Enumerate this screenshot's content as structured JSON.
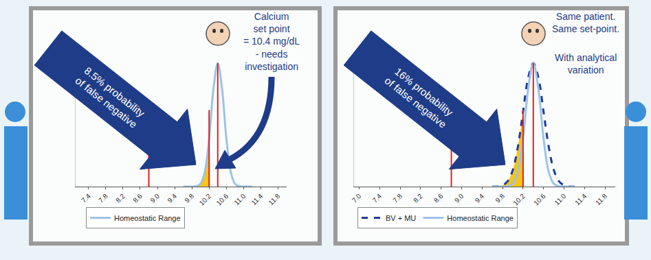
{
  "chart_data": [
    {
      "type": "line",
      "x": [
        9.6,
        9.7,
        9.8,
        9.9,
        10.0,
        10.1,
        10.2,
        10.3,
        10.4,
        10.5,
        10.6,
        10.7,
        10.8,
        10.9,
        11.0,
        11.1,
        11.2
      ],
      "series": [
        {
          "name": "Homeostatic Range",
          "color": "#9dc3e6",
          "line_style": "solid",
          "values": [
            0,
            0,
            0,
            0.003,
            0.023,
            0.122,
            0.39,
            0.79,
            1,
            0.79,
            0.39,
            0.122,
            0.023,
            0.003,
            0,
            0,
            0
          ]
        }
      ],
      "xlim": [
        7.1,
        12
      ],
      "xticks": [
        7.4,
        7.8,
        8.2,
        8.6,
        {
          "value": 9,
          "label": "9.0"
        },
        9.4,
        9.8,
        10.2,
        10.6,
        {
          "value": 11,
          "label": "11.0"
        },
        11.4,
        11.8
      ],
      "ylim": [
        0,
        1.05
      ],
      "grid": false,
      "tick_labels": "x",
      "legend": "bottom",
      "vlines": {
        "x": [
          8.8,
          10.2,
          10.4
        ],
        "top": [
          0.62,
          0.62,
          1
        ],
        "color": "#e02020"
      },
      "shaded_below": 10.2,
      "shade_color": "#f5c518",
      "arrow_label": [
        "8.5% probability",
        "of false negative"
      ],
      "notes": [
        [
          "Calcium",
          "set point",
          "= 10.4 mg/dL",
          "- needs",
          "investigation"
        ]
      ]
    },
    {
      "type": "line",
      "x": [
        9.6,
        9.7,
        9.8,
        9.9,
        10.0,
        10.1,
        10.2,
        10.3,
        10.4,
        10.5,
        10.6,
        10.7,
        10.8,
        10.9,
        11.0,
        11.1,
        11.2
      ],
      "series": [
        {
          "name": "BV + MU",
          "color": "#1f3a9e",
          "line_style": "dashed",
          "values": [
            0.0003,
            0.002,
            0.011,
            0.044,
            0.135,
            0.325,
            0.607,
            0.882,
            1,
            0.882,
            0.607,
            0.325,
            0.135,
            0.044,
            0.011,
            0.002,
            0.0003
          ]
        },
        {
          "name": "Homeostatic Range",
          "color": "#9dc3e6",
          "line_style": "solid",
          "values": [
            0,
            0,
            0,
            0.003,
            0.023,
            0.122,
            0.39,
            0.79,
            1,
            0.79,
            0.39,
            0.122,
            0.023,
            0.003,
            0,
            0,
            0
          ]
        }
      ],
      "xlim": [
        6.9,
        12
      ],
      "xticks": [
        {
          "value": 7,
          "label": "7.0"
        },
        7.4,
        7.8,
        8.2,
        8.6,
        {
          "value": 9,
          "label": "9.0"
        },
        9.4,
        9.8,
        10.2,
        10.6,
        {
          "value": 11,
          "label": "11.0"
        },
        11.4,
        11.8
      ],
      "ylim": [
        0,
        1.05
      ],
      "grid": false,
      "tick_labels": "x",
      "legend": "bottom",
      "vlines": {
        "x": [
          8.8,
          10.2,
          10.4
        ],
        "top": [
          0.62,
          0.62,
          1
        ],
        "color": "#e02020"
      },
      "shaded_below": 10.2,
      "shade_color": "#f5c518",
      "arrow_label": [
        "16% probability",
        "of false negative"
      ],
      "notes": [
        [
          "Same patient.",
          "Same set-point."
        ],
        [
          "With analytical",
          "variation"
        ]
      ]
    }
  ]
}
